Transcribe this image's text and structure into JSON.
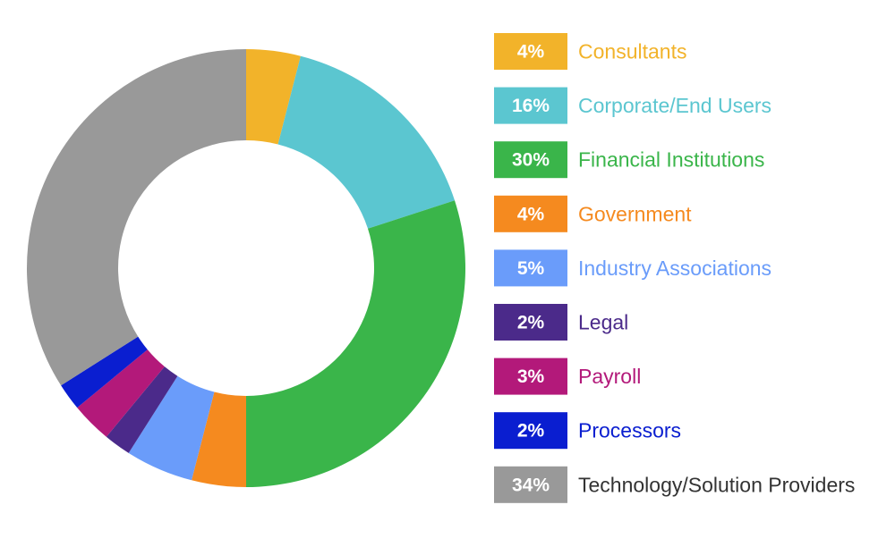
{
  "chart_data": {
    "type": "pie",
    "variant": "donut",
    "title": "",
    "unit": "%",
    "series": [
      {
        "label": "Consultants",
        "value": 4,
        "value_label": "4%",
        "color": "#F2B32A"
      },
      {
        "label": "Corporate/End Users",
        "value": 16,
        "value_label": "16%",
        "color": "#5BC6D0"
      },
      {
        "label": "Financial Institutions",
        "value": 30,
        "value_label": "30%",
        "color": "#3AB54A"
      },
      {
        "label": "Government",
        "value": 4,
        "value_label": "4%",
        "color": "#F58A1F"
      },
      {
        "label": "Industry Associations",
        "value": 5,
        "value_label": "5%",
        "color": "#6A9CFA"
      },
      {
        "label": "Legal",
        "value": 2,
        "value_label": "2%",
        "color": "#4B2A8A"
      },
      {
        "label": "Payroll",
        "value": 3,
        "value_label": "3%",
        "color": "#B3197A"
      },
      {
        "label": "Processors",
        "value": 2,
        "value_label": "2%",
        "color": "#0A1ED0"
      },
      {
        "label": "Technology/Solution Providers",
        "value": 34,
        "value_label": "34%",
        "color": "#999999"
      }
    ],
    "legend": "right"
  },
  "colors": {
    "last_label_text": "#333333"
  }
}
